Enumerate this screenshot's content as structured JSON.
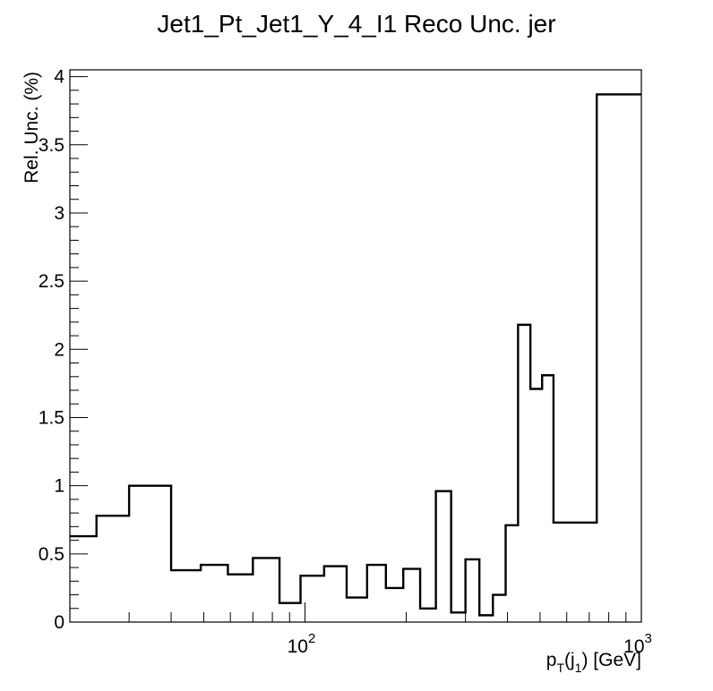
{
  "chart_data": {
    "type": "histogram",
    "title": "Jet1_Pt_Jet1_Y_4_I1 Reco Unc. jer",
    "xlabel": {
      "base": "p",
      "sub1": "T",
      "mid": "(j",
      "sub2": "1",
      "end": ") [GeV]"
    },
    "ylabel": "Rel. Unc. (%)",
    "x_scale": "log",
    "xlim": [
      20,
      1000
    ],
    "ylim": [
      0,
      4.05
    ],
    "y_ticks": [
      0,
      0.5,
      1,
      1.5,
      2,
      2.5,
      3,
      3.5,
      4
    ],
    "y_tick_labels": [
      "0",
      "0.5",
      "1",
      "1.5",
      "2",
      "2.5",
      "3",
      "3.5",
      "4"
    ],
    "x_tick_labels": [
      {
        "value": 100,
        "base": "10",
        "exp": "2"
      },
      {
        "value": 1000,
        "base": "10",
        "exp": "3"
      }
    ],
    "bin_edges": [
      20,
      24,
      30,
      40,
      49,
      59,
      70,
      84,
      97,
      114,
      133,
      153,
      174,
      196,
      220,
      245,
      272,
      300,
      330,
      362,
      395,
      430,
      468,
      507,
      548,
      592,
      638,
      686,
      737,
      790,
      846,
      905,
      967,
      1000
    ],
    "values": [
      0.63,
      0.78,
      1.0,
      0.38,
      0.42,
      0.35,
      0.47,
      0.14,
      0.34,
      0.41,
      0.18,
      0.42,
      0.25,
      0.39,
      0.1,
      0.96,
      0.07,
      0.46,
      0.05,
      0.2,
      0.71,
      2.18,
      1.71,
      1.81,
      0.73,
      0.73,
      0.73,
      0.73,
      3.87,
      3.87,
      3.87,
      3.87,
      3.87
    ],
    "grid": false,
    "line_color": "#000000"
  }
}
